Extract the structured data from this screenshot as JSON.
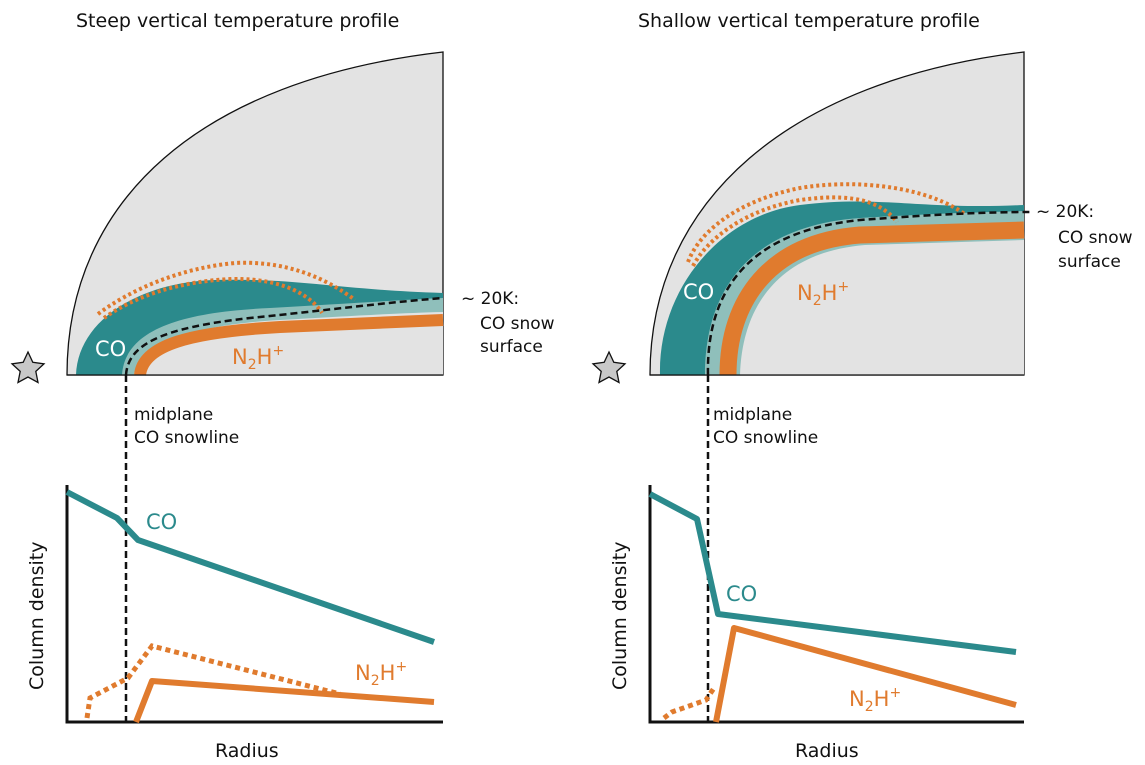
{
  "panels": [
    {
      "title": "Steep vertical temperature profile",
      "disk_labels": {
        "co": "CO",
        "n2h": "N",
        "n2h_sub": "2",
        "n2h_mid": "H",
        "n2h_sup": "+"
      },
      "snow_surface_label": [
        "~ 20K:",
        "CO snow",
        "surface"
      ],
      "snowline_label": [
        "midplane",
        "CO snowline"
      ],
      "plot": {
        "ylabel": "Column density",
        "xlabel": "Radius",
        "co_label": "CO",
        "n2h_label": {
          "main": "N",
          "sub": "2",
          "mid": "H",
          "sup": "+"
        }
      }
    },
    {
      "title": "Shallow vertical temperature profile",
      "disk_labels": {
        "co": "CO",
        "n2h": "N",
        "n2h_sub": "2",
        "n2h_mid": "H",
        "n2h_sup": "+"
      },
      "snow_surface_label": [
        "~ 20K:",
        "CO snow",
        "surface"
      ],
      "snowline_label": [
        "midplane",
        "CO snowline"
      ],
      "plot": {
        "ylabel": "Column density",
        "xlabel": "Radius",
        "co_label": "CO",
        "n2h_label": {
          "main": "N",
          "sub": "2",
          "mid": "H",
          "sup": "+"
        }
      }
    }
  ],
  "colors": {
    "disk_fill": "#e3e3e3",
    "co_teal": "#2b8a8c",
    "light_teal": "#8fbfbb",
    "n2h_orange": "#e07b2e",
    "star_fill": "#c8c8c8"
  },
  "icons": {
    "star": "star-icon"
  }
}
